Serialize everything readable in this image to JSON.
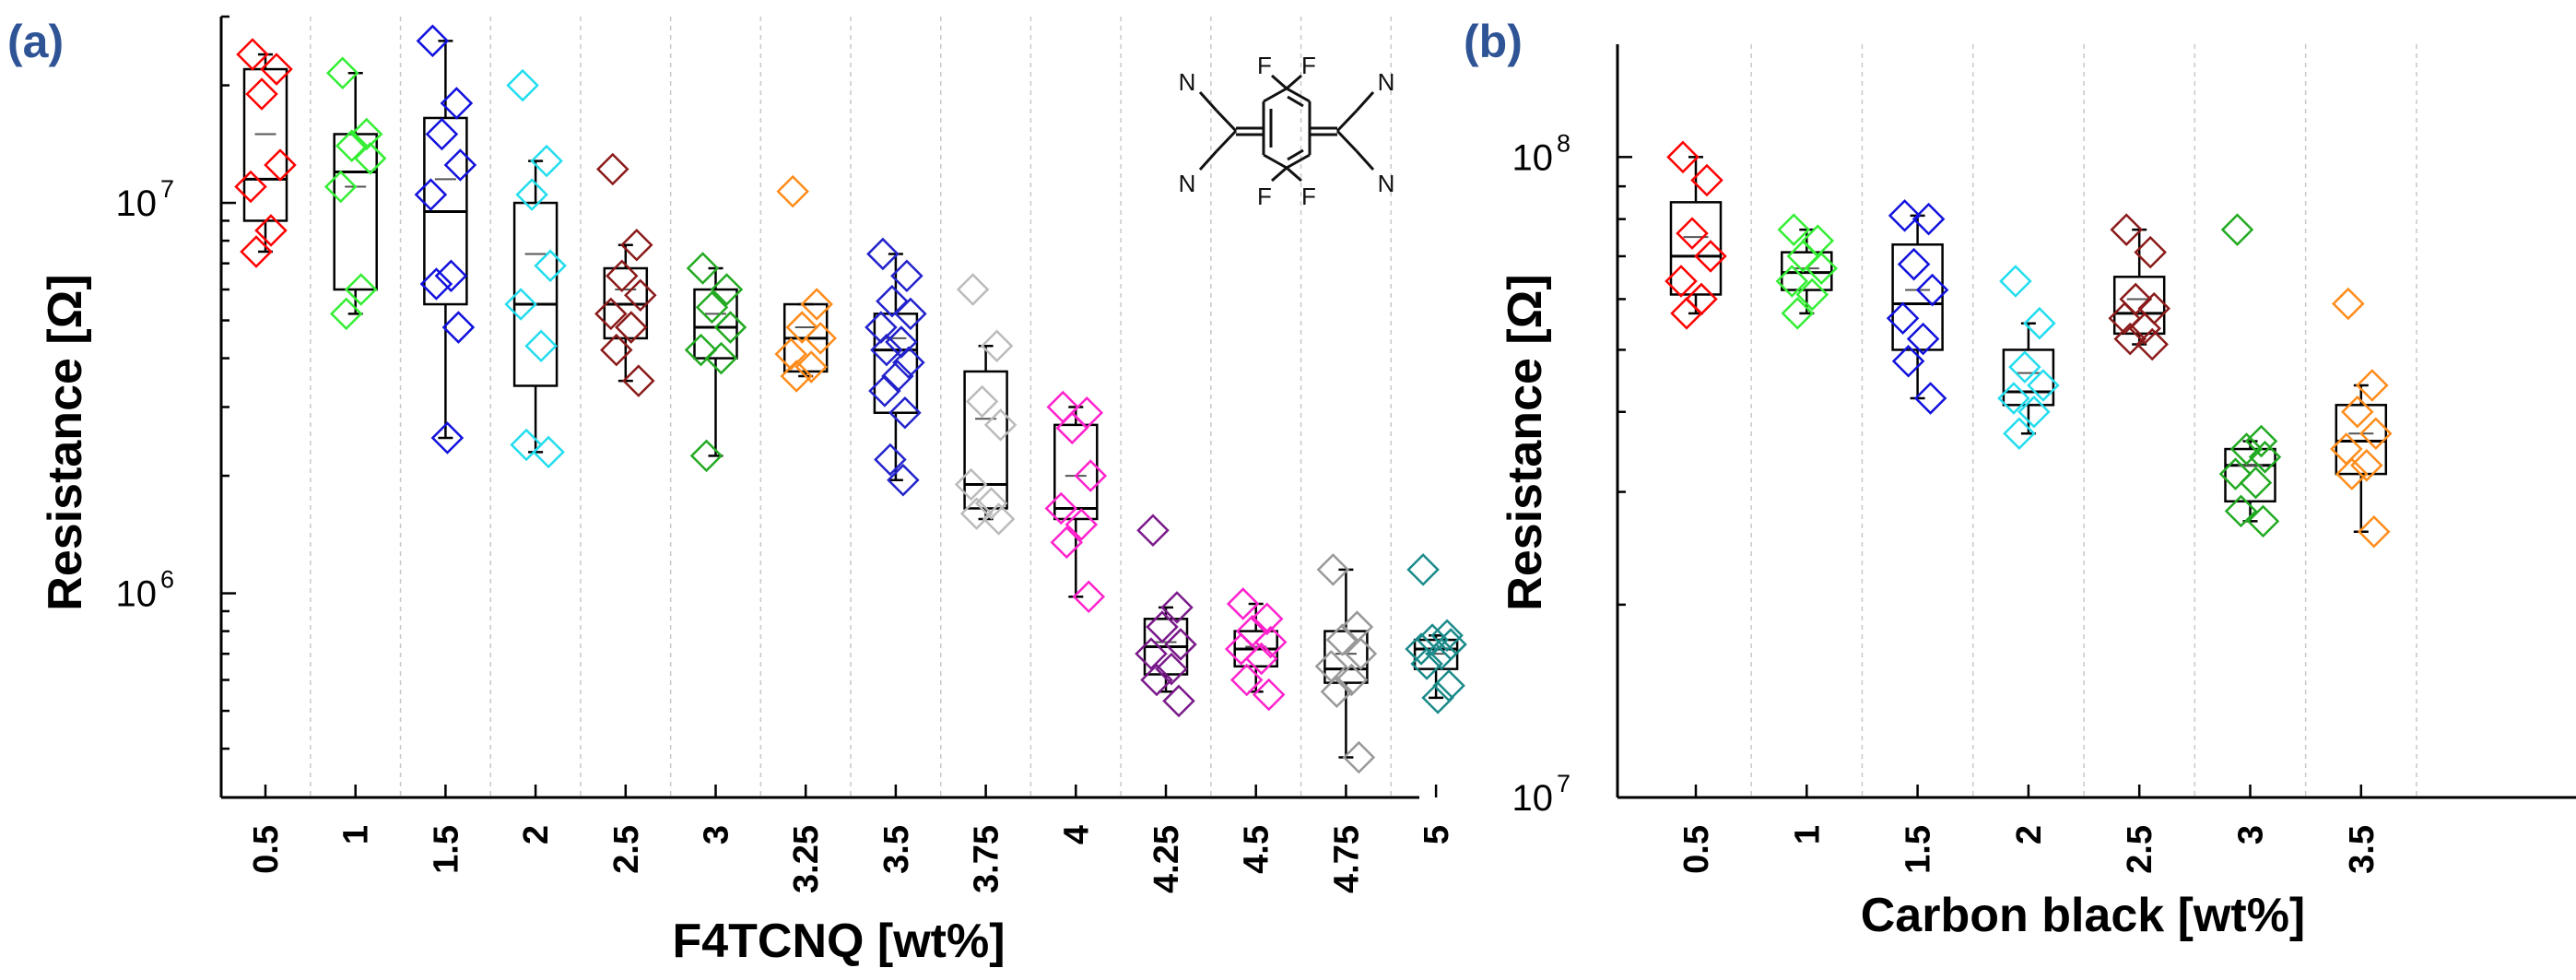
{
  "chart_data": [
    {
      "type": "box",
      "panel_label": "(a)",
      "xlabel": "F4TCNQ [wt%]",
      "ylabel": "Resistance [Ω]",
      "y_scale": "log",
      "ylim": [
        300000,
        30000000
      ],
      "y_ticks": [
        {
          "value": 1000000,
          "base": "10",
          "exp": "6"
        },
        {
          "value": 10000000,
          "base": "10",
          "exp": "7"
        }
      ],
      "grid_vertical": true,
      "inset": {
        "atoms": [
          "N",
          "F",
          "F",
          "N",
          "N",
          "F",
          "F",
          "N"
        ]
      },
      "categories": [
        "0.5",
        "1",
        "1.5",
        "2",
        "2.5",
        "3",
        "3.25",
        "3.5",
        "3.75",
        "4",
        "4.25",
        "4.5",
        "4.75",
        "5"
      ],
      "series": [
        {
          "color": "#ff0000",
          "box": {
            "q1": 9000000,
            "median": 11500000,
            "q3": 22000000,
            "mean": 15000000,
            "whisker_low": 7500000,
            "whisker_high": 24000000
          },
          "points": [
            24000000,
            22000000,
            19000000,
            12500000,
            11000000,
            8500000,
            7500000
          ]
        },
        {
          "color": "#33ee33",
          "box": {
            "q1": 6000000,
            "median": 12000000,
            "q3": 15000000,
            "mean": 11000000,
            "whisker_low": 5200000,
            "whisker_high": 21500000
          },
          "points": [
            21500000,
            15000000,
            14000000,
            13000000,
            11000000,
            6000000,
            5200000
          ]
        },
        {
          "color": "#1111dd",
          "box": {
            "q1": 5500000,
            "median": 9500000,
            "q3": 16500000,
            "mean": 11500000,
            "whisker_low": 2500000,
            "whisker_high": 26000000
          },
          "points": [
            26000000,
            18000000,
            15000000,
            12500000,
            10500000,
            6500000,
            6200000,
            4800000,
            2500000
          ]
        },
        {
          "color": "#22ddee",
          "box": {
            "q1": 3400000,
            "median": 5500000,
            "q3": 10000000,
            "mean": 7400000,
            "whisker_low": 2300000,
            "whisker_high": 12800000
          },
          "points": [
            20000000,
            12800000,
            10500000,
            6900000,
            5500000,
            4300000,
            2400000,
            2300000
          ]
        },
        {
          "color": "#8b1a1a",
          "box": {
            "q1": 4500000,
            "median": 5500000,
            "q3": 6800000,
            "mean": 6000000,
            "whisker_low": 3500000,
            "whisker_high": 7800000
          },
          "points": [
            12200000,
            7800000,
            6500000,
            5800000,
            5200000,
            4800000,
            4200000,
            3500000
          ]
        },
        {
          "color": "#22aa22",
          "box": {
            "q1": 4000000,
            "median": 4800000,
            "q3": 6000000,
            "mean": 5200000,
            "whisker_low": 2250000,
            "whisker_high": 6800000
          },
          "points": [
            6800000,
            6000000,
            5400000,
            4800000,
            4200000,
            4000000,
            2250000
          ]
        },
        {
          "color": "#ff8c1a",
          "box": {
            "q1": 3700000,
            "median": 4500000,
            "q3": 5500000,
            "mean": 4800000,
            "whisker_low": 3600000,
            "whisker_high": 5500000
          },
          "points": [
            10700000,
            5500000,
            4800000,
            4500000,
            4100000,
            3800000,
            3600000
          ]
        },
        {
          "color": "#2222cc",
          "box": {
            "q1": 2900000,
            "median": 4200000,
            "q3": 5200000,
            "mean": 4500000,
            "whisker_low": 1950000,
            "whisker_high": 7400000
          },
          "points": [
            7400000,
            6500000,
            5600000,
            5200000,
            4800000,
            4400000,
            4200000,
            3900000,
            3600000,
            3300000,
            2900000,
            2200000,
            1950000
          ]
        },
        {
          "color": "#bbbbbb",
          "box": {
            "q1": 1650000,
            "median": 1900000,
            "q3": 3700000,
            "mean": 2800000,
            "whisker_low": 1550000,
            "whisker_high": 4300000
          },
          "points": [
            6000000,
            4300000,
            3100000,
            2700000,
            1900000,
            1700000,
            1600000,
            1550000
          ]
        },
        {
          "color": "#ff22cc",
          "box": {
            "q1": 1550000,
            "median": 1650000,
            "q3": 2700000,
            "mean": 2000000,
            "whisker_low": 980000,
            "whisker_high": 3000000
          },
          "points": [
            3000000,
            2900000,
            2650000,
            2000000,
            1650000,
            1500000,
            1350000,
            980000
          ]
        },
        {
          "color": "#7a1a8a",
          "box": {
            "q1": 620000,
            "median": 730000,
            "q3": 860000,
            "mean": 750000,
            "whisker_low": 560000,
            "whisker_high": 920000
          },
          "points": [
            1450000,
            920000,
            820000,
            740000,
            700000,
            640000,
            600000,
            530000
          ]
        },
        {
          "color": "#ff22cc",
          "box": {
            "q1": 650000,
            "median": 720000,
            "q3": 800000,
            "mean": 730000,
            "whisker_low": 560000,
            "whisker_high": 940000
          },
          "points": [
            940000,
            860000,
            800000,
            750000,
            720000,
            680000,
            600000,
            550000
          ]
        },
        {
          "color": "#999999",
          "box": {
            "q1": 590000,
            "median": 640000,
            "q3": 800000,
            "mean": 700000,
            "whisker_low": 380000,
            "whisker_high": 1150000
          },
          "points": [
            1150000,
            820000,
            760000,
            700000,
            650000,
            600000,
            560000,
            380000
          ]
        },
        {
          "color": "#1a8a8a",
          "box": {
            "q1": 640000,
            "median": 720000,
            "q3": 760000,
            "mean": 700000,
            "whisker_low": 540000,
            "whisker_high": 780000
          },
          "points": [
            1150000,
            780000,
            760000,
            740000,
            720000,
            700000,
            660000,
            580000,
            540000
          ]
        }
      ]
    },
    {
      "type": "box",
      "panel_label": "(b)",
      "xlabel": "Carbon black [wt%]",
      "ylabel": "Resistance [Ω]",
      "y_scale": "log",
      "ylim": [
        10000000,
        150000000
      ],
      "y_ticks": [
        {
          "value": 10000000,
          "base": "10",
          "exp": "7"
        },
        {
          "value": 100000000,
          "base": "10",
          "exp": "8"
        }
      ],
      "grid_vertical": true,
      "categories": [
        "0.5",
        "1",
        "1.5",
        "2",
        "2.5",
        "3",
        "3.5"
      ],
      "series": [
        {
          "color": "#ff0000",
          "box": {
            "q1": 61000000,
            "median": 70000000,
            "q3": 85000000,
            "mean": 75000000,
            "whisker_low": 57000000,
            "whisker_high": 100000000
          },
          "points": [
            100000000,
            92000000,
            76000000,
            70000000,
            64000000,
            60000000,
            57000000
          ]
        },
        {
          "color": "#33ee33",
          "box": {
            "q1": 62000000,
            "median": 66000000,
            "q3": 71000000,
            "mean": 67000000,
            "whisker_low": 57000000,
            "whisker_high": 77000000
          },
          "points": [
            77000000,
            74000000,
            70000000,
            67000000,
            64000000,
            61000000,
            57000000
          ]
        },
        {
          "color": "#1111dd",
          "box": {
            "q1": 50000000,
            "median": 59000000,
            "q3": 73000000,
            "mean": 62000000,
            "whisker_low": 42000000,
            "whisker_high": 81000000
          },
          "points": [
            81000000,
            80000000,
            68000000,
            62000000,
            56000000,
            52000000,
            48000000,
            42000000
          ]
        },
        {
          "color": "#22ddee",
          "box": {
            "q1": 41000000,
            "median": 43000000,
            "q3": 50000000,
            "mean": 46000000,
            "whisker_low": 37000000,
            "whisker_high": 55000000
          },
          "points": [
            64000000,
            55000000,
            47000000,
            44000000,
            42000000,
            40000000,
            37000000
          ]
        },
        {
          "color": "#8b1a1a",
          "box": {
            "q1": 53000000,
            "median": 57000000,
            "q3": 65000000,
            "mean": 60000000,
            "whisker_low": 51000000,
            "whisker_high": 77000000
          },
          "points": [
            77000000,
            71000000,
            60000000,
            58000000,
            56000000,
            54000000,
            52000000,
            51000000
          ]
        },
        {
          "color": "#22aa22",
          "box": {
            "q1": 29000000,
            "median": 33000000,
            "q3": 35000000,
            "mean": 33000000,
            "whisker_low": 27000000,
            "whisker_high": 36000000
          },
          "points": [
            77000000,
            36000000,
            35000000,
            34000000,
            32000000,
            31000000,
            28000000,
            27000000
          ]
        },
        {
          "color": "#ff8c1a",
          "box": {
            "q1": 32000000,
            "median": 36000000,
            "q3": 41000000,
            "mean": 37000000,
            "whisker_low": 26000000,
            "whisker_high": 44000000
          },
          "points": [
            59000000,
            44000000,
            40000000,
            37000000,
            35000000,
            33000000,
            32000000,
            26000000
          ]
        }
      ]
    }
  ]
}
